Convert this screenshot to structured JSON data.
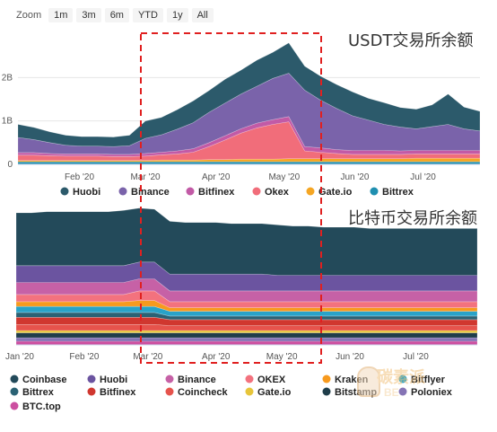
{
  "zoom": {
    "label": "Zoom",
    "buttons": [
      "1m",
      "3m",
      "6m",
      "YTD",
      "1y",
      "All"
    ]
  },
  "watermark": {
    "text": "碳素派",
    "sub": "BE"
  },
  "colors": {
    "Huobi": "#2c5a6b",
    "Binance": "#7a63aa",
    "Bitfinex": "#c25aa6",
    "Okex": "#f16d7a",
    "Gate.io": "#f5a623",
    "Bittrex": "#1f8fb0",
    "Coinbase": "#234a5a",
    "Huobi2": "#6b54a0",
    "Binance2": "#c661a6",
    "OKEX": "#f3727e",
    "Kraken": "#f79a1e",
    "Bitflyer": "#28a3c8",
    "Bittrex2": "#2a6274",
    "Bitfinex2": "#d0372f",
    "Coincheck": "#e6534c",
    "Gate.io2": "#e7c53a",
    "Bitstamp": "#1f3d4a",
    "Poloniex": "#8574b5",
    "BTC.top": "#cc4fa0",
    "highlight": "#e02020"
  },
  "chart_data": [
    {
      "type": "area",
      "stacked": true,
      "title": "USDT交易所余额",
      "x_dates": [
        "2020-01-05",
        "2020-01-12",
        "2020-01-19",
        "2020-01-26",
        "2020-02-02",
        "2020-02-09",
        "2020-02-16",
        "2020-02-23",
        "2020-03-01",
        "2020-03-08",
        "2020-03-15",
        "2020-03-22",
        "2020-03-29",
        "2020-04-05",
        "2020-04-12",
        "2020-04-19",
        "2020-04-26",
        "2020-05-03",
        "2020-05-10",
        "2020-05-17",
        "2020-05-24",
        "2020-05-31",
        "2020-06-07",
        "2020-06-14",
        "2020-06-21",
        "2020-06-28",
        "2020-07-05",
        "2020-07-12",
        "2020-07-19",
        "2020-07-26"
      ],
      "x_tick_labels": [
        "Feb '20",
        "Mar '20",
        "Apr '20",
        "May '20",
        "Jun '20",
        "Jul '20"
      ],
      "x_tick_dates": [
        "2020-02-01",
        "2020-03-01",
        "2020-04-01",
        "2020-05-01",
        "2020-06-01",
        "2020-07-01"
      ],
      "y_tick_labels": [
        "0",
        "1B",
        "2B"
      ],
      "y_ticks": [
        0,
        1,
        2
      ],
      "ylim": [
        0,
        3
      ],
      "y_unit": "B",
      "series": [
        {
          "name": "Bittrex",
          "values": [
            0.06,
            0.06,
            0.06,
            0.06,
            0.06,
            0.06,
            0.06,
            0.06,
            0.06,
            0.06,
            0.06,
            0.06,
            0.06,
            0.06,
            0.06,
            0.06,
            0.06,
            0.06,
            0.06,
            0.06,
            0.06,
            0.06,
            0.06,
            0.06,
            0.06,
            0.06,
            0.06,
            0.06,
            0.06,
            0.06
          ]
        },
        {
          "name": "Gate.io",
          "values": [
            0.03,
            0.03,
            0.03,
            0.03,
            0.03,
            0.03,
            0.03,
            0.03,
            0.03,
            0.04,
            0.04,
            0.04,
            0.05,
            0.05,
            0.06,
            0.06,
            0.06,
            0.07,
            0.07,
            0.07,
            0.07,
            0.07,
            0.07,
            0.07,
            0.07,
            0.08,
            0.08,
            0.08,
            0.08,
            0.08
          ]
        },
        {
          "name": "Okex",
          "values": [
            0.12,
            0.12,
            0.11,
            0.1,
            0.1,
            0.1,
            0.09,
            0.09,
            0.1,
            0.12,
            0.14,
            0.18,
            0.3,
            0.45,
            0.6,
            0.72,
            0.8,
            0.85,
            0.18,
            0.15,
            0.12,
            0.1,
            0.1,
            0.1,
            0.1,
            0.1,
            0.1,
            0.1,
            0.1,
            0.1
          ]
        },
        {
          "name": "Bitfinex",
          "values": [
            0.06,
            0.06,
            0.05,
            0.05,
            0.05,
            0.05,
            0.05,
            0.05,
            0.06,
            0.06,
            0.07,
            0.08,
            0.09,
            0.1,
            0.1,
            0.11,
            0.11,
            0.12,
            0.1,
            0.1,
            0.09,
            0.09,
            0.09,
            0.09,
            0.08,
            0.08,
            0.08,
            0.08,
            0.08,
            0.08
          ]
        },
        {
          "name": "Binance",
          "values": [
            0.35,
            0.3,
            0.25,
            0.2,
            0.18,
            0.18,
            0.18,
            0.2,
            0.35,
            0.4,
            0.5,
            0.6,
            0.7,
            0.75,
            0.8,
            0.85,
            0.95,
            1.0,
            1.3,
            1.1,
            0.95,
            0.8,
            0.7,
            0.6,
            0.55,
            0.5,
            0.55,
            0.6,
            0.5,
            0.45
          ]
        },
        {
          "name": "Huobi",
          "values": [
            0.3,
            0.28,
            0.25,
            0.23,
            0.22,
            0.22,
            0.22,
            0.24,
            0.4,
            0.4,
            0.45,
            0.5,
            0.5,
            0.55,
            0.55,
            0.6,
            0.6,
            0.7,
            0.55,
            0.55,
            0.55,
            0.55,
            0.5,
            0.5,
            0.45,
            0.45,
            0.5,
            0.7,
            0.5,
            0.45
          ]
        }
      ],
      "legend": [
        "Huobi",
        "Binance",
        "Bitfinex",
        "Okex",
        "Gate.io",
        "Bittrex"
      ]
    },
    {
      "type": "area",
      "stacked": true,
      "title": "比特币交易所余额",
      "x_dates": [
        "2020-01-01",
        "2020-01-08",
        "2020-01-15",
        "2020-01-22",
        "2020-01-29",
        "2020-02-05",
        "2020-02-12",
        "2020-02-19",
        "2020-02-26",
        "2020-03-04",
        "2020-03-11",
        "2020-03-18",
        "2020-03-25",
        "2020-04-01",
        "2020-04-08",
        "2020-04-15",
        "2020-04-22",
        "2020-04-29",
        "2020-05-06",
        "2020-05-13",
        "2020-05-20",
        "2020-05-27",
        "2020-06-03",
        "2020-06-10",
        "2020-06-17",
        "2020-06-24",
        "2020-07-01",
        "2020-07-08",
        "2020-07-15",
        "2020-07-22",
        "2020-07-29"
      ],
      "x_tick_labels": [
        "Jan '20",
        "Feb '20",
        "Mar '20",
        "Apr '20",
        "May '20",
        "Jun '20",
        "Jul '20"
      ],
      "x_tick_dates": [
        "2020-01-01",
        "2020-02-01",
        "2020-03-01",
        "2020-04-01",
        "2020-05-01",
        "2020-06-01",
        "2020-07-01"
      ],
      "series": [
        {
          "name": "BTC.top",
          "values": [
            3,
            3,
            3,
            3,
            3,
            3,
            3,
            3,
            3,
            3,
            3,
            3,
            3,
            3,
            3,
            3,
            3,
            3,
            3,
            3,
            3,
            3,
            3,
            3,
            3,
            3,
            3,
            3,
            3,
            3,
            3
          ]
        },
        {
          "name": "Poloniex",
          "values": [
            3,
            3,
            3,
            3,
            3,
            3,
            3,
            3,
            3,
            3,
            3,
            3,
            3,
            3,
            3,
            3,
            3,
            3,
            3,
            3,
            3,
            3,
            3,
            3,
            3,
            3,
            3,
            3,
            3,
            3,
            3
          ]
        },
        {
          "name": "Bitstamp",
          "values": [
            4,
            4,
            4,
            4,
            4,
            4,
            4,
            4,
            4,
            4,
            4,
            4,
            4,
            4,
            4,
            4,
            4,
            4,
            4,
            4,
            4,
            4,
            4,
            4,
            4,
            4,
            4,
            4,
            4,
            4,
            4
          ]
        },
        {
          "name": "Gate.io",
          "values": [
            2,
            2,
            2,
            2,
            2,
            2,
            2,
            2,
            2,
            2,
            2,
            2,
            2,
            2,
            2,
            2,
            2,
            2,
            2,
            2,
            2,
            2,
            2,
            2,
            2,
            2,
            2,
            2,
            2,
            2,
            2
          ]
        },
        {
          "name": "Coincheck",
          "values": [
            5,
            5,
            5,
            5,
            5,
            5,
            5,
            5,
            5,
            5,
            4,
            4,
            4,
            4,
            4,
            4,
            4,
            4,
            4,
            4,
            4,
            4,
            4,
            4,
            4,
            4,
            4,
            4,
            4,
            4,
            4
          ]
        },
        {
          "name": "Bitfinex",
          "values": [
            6,
            6,
            6,
            6,
            6,
            6,
            6,
            6,
            6,
            6,
            5,
            5,
            5,
            5,
            5,
            5,
            5,
            5,
            5,
            5,
            5,
            5,
            5,
            5,
            5,
            5,
            5,
            5,
            5,
            5,
            5
          ]
        },
        {
          "name": "Bittrex",
          "values": [
            4,
            4,
            4,
            4,
            4,
            4,
            4,
            4,
            4,
            4,
            3,
            3,
            3,
            3,
            3,
            3,
            3,
            3,
            3,
            3,
            3,
            3,
            3,
            3,
            3,
            3,
            3,
            3,
            3,
            3,
            3
          ]
        },
        {
          "name": "Bitflyer",
          "values": [
            5,
            5,
            5,
            5,
            5,
            5,
            5,
            5,
            5,
            5,
            4,
            4,
            4,
            4,
            4,
            4,
            4,
            4,
            4,
            4,
            4,
            4,
            4,
            4,
            4,
            4,
            4,
            4,
            4,
            4,
            4
          ]
        },
        {
          "name": "Kraken",
          "values": [
            4,
            4,
            4,
            4,
            4,
            4,
            4,
            4,
            5,
            5,
            3,
            3,
            3,
            3,
            3,
            3,
            3,
            3,
            3,
            3,
            3,
            3,
            3,
            3,
            3,
            3,
            3,
            3,
            3,
            3,
            3
          ]
        },
        {
          "name": "OKEX",
          "values": [
            6,
            6,
            6,
            6,
            6,
            6,
            6,
            6,
            8,
            8,
            5,
            5,
            5,
            5,
            5,
            5,
            5,
            5,
            5,
            5,
            5,
            5,
            5,
            5,
            5,
            5,
            5,
            5,
            5,
            5,
            5
          ]
        },
        {
          "name": "Binance",
          "values": [
            10,
            10,
            10,
            10,
            10,
            10,
            10,
            10,
            10,
            10,
            9,
            9,
            9,
            9,
            9,
            9,
            9,
            9,
            9,
            9,
            9,
            9,
            9,
            9,
            9,
            9,
            9,
            9,
            9,
            9,
            9
          ]
        },
        {
          "name": "Huobi",
          "values": [
            14,
            14,
            14,
            14,
            14,
            14,
            14,
            14,
            14,
            14,
            14,
            14,
            14,
            14,
            14,
            14,
            14,
            13,
            13,
            13,
            13,
            13,
            13,
            13,
            13,
            13,
            13,
            13,
            13,
            13,
            13
          ]
        },
        {
          "name": "Coinbase",
          "values": [
            44,
            44,
            45,
            45,
            45,
            45,
            45,
            46,
            45,
            44,
            44,
            43,
            43,
            43,
            42,
            42,
            42,
            42,
            41,
            41,
            40,
            40,
            40,
            39,
            39,
            39,
            39,
            39,
            39,
            39,
            39
          ]
        }
      ],
      "legend": [
        "Coinbase",
        "Huobi",
        "Binance",
        "OKEX",
        "Kraken",
        "Bitflyer",
        "Bittrex",
        "Bitfinex",
        "Coincheck",
        "Gate.io",
        "Bitstamp",
        "Poloniex",
        "BTC.top"
      ]
    }
  ]
}
